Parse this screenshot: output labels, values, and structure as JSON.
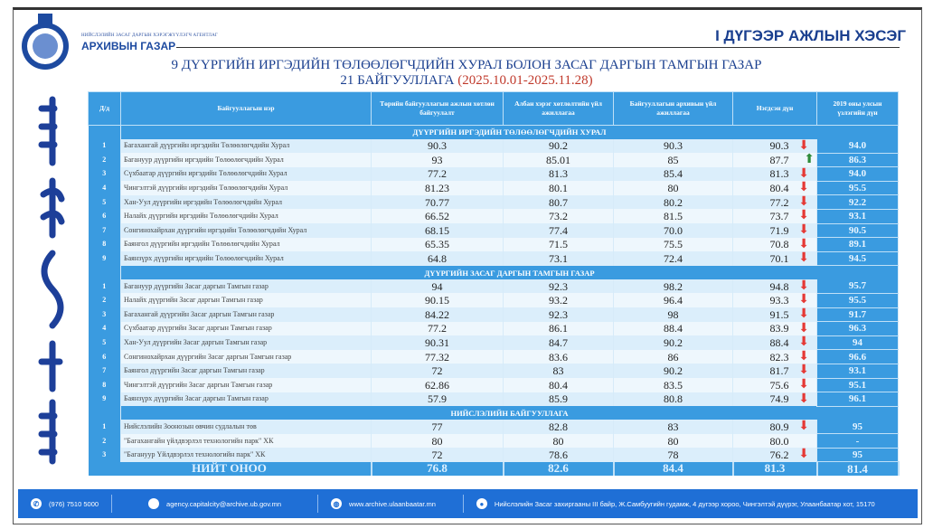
{
  "header": {
    "org_small": "НИЙСЛЭЛИЙН ЗАСАГ ДАРГЫН ХЭРЭГЖҮҮЛЭГЧ АГЕНТЛАГ",
    "org": "АРХИВЫН ГАЗАР",
    "section": "I ДҮГЭЭР АЖЛЫН ХЭСЭГ",
    "title1": "9 ДҮҮРГИЙН ИРГЭДИЙН ТӨЛӨӨЛӨГЧДИЙН ХУРАЛ БОЛОН ЗАСАГ ДАРГЫН ТАМГЫН ГАЗАР",
    "title2": "21 БАЙГУУЛЛАГА",
    "period": "(2025.10.01-2025.11.28)"
  },
  "columns": [
    "Д/д",
    "Байгууллагын нэр",
    "Төрийн байгууллагын ажлын хөтлөн байгуулалт",
    "Албан хэрэг хөтлөлтийн үйл ажиллагаа",
    "Байгууллагын архивын үйл ажиллагаа",
    "Нэгдсэн дүн",
    "2019 оны улсын үзлэгийн дүн"
  ],
  "sections": [
    {
      "title": "ДҮҮРГИЙН ИРГЭДИЙН ТӨЛӨӨЛӨГЧДИЙН ХУРАЛ",
      "rows": [
        [
          "1",
          "Багахангай дүүргийн иргэдийн Төлөөлөгчдийн Хурал",
          "90.3",
          "90.2",
          "90.3",
          "90.3",
          "down",
          "94.0"
        ],
        [
          "2",
          "Багануур дүүргийн иргэдийн Төлөөлөгчдийн Хурал",
          "93",
          "85.01",
          "85",
          "87.7",
          "up",
          "86.3"
        ],
        [
          "3",
          "Сүхбаатар дүүргийн иргэдийн Төлөөлөгчдийн Хурал",
          "77.2",
          "81.3",
          "85.4",
          "81.3",
          "down",
          "94.0"
        ],
        [
          "4",
          "Чингэлтэй дүүргийн иргэдийн Төлөөлөгчдийн Хурал",
          "81.23",
          "80.1",
          "80",
          "80.4",
          "down",
          "95.5"
        ],
        [
          "5",
          "Хан-Уул дүүргийн иргэдийн Төлөөлөгчдийн Хурал",
          "70.77",
          "80.7",
          "80.2",
          "77.2",
          "down",
          "92.2"
        ],
        [
          "6",
          "Налайх дүүргийн иргэдийн Төлөөлөгчдийн Хурал",
          "66.52",
          "73.2",
          "81.5",
          "73.7",
          "down",
          "93.1"
        ],
        [
          "7",
          "Сонгинохайрхан дүүргийн иргэдийн Төлөөлөгчдийн Хурал",
          "68.15",
          "77.4",
          "70.0",
          "71.9",
          "down",
          "90.5"
        ],
        [
          "8",
          "Баянгол дүүргийн иргэдийн Төлөөлөгчдийн Хурал",
          "65.35",
          "71.5",
          "75.5",
          "70.8",
          "down",
          "89.1"
        ],
        [
          "9",
          "Баянзүрх дүүргийн иргэдийн Төлөөлөгчдийн Хурал",
          "64.8",
          "73.1",
          "72.4",
          "70.1",
          "down",
          "94.5"
        ]
      ]
    },
    {
      "title": "ДҮҮРГИЙН ЗАСАГ ДАРГЫН ТАМГЫН ГАЗАР",
      "rows": [
        [
          "1",
          "Багануур дүүргийн Засаг даргын Тамгын газар",
          "94",
          "92.3",
          "98.2",
          "94.8",
          "down",
          "95.7"
        ],
        [
          "2",
          "Налайх дүүргийн Засаг даргын Тамгын газар",
          "90.15",
          "93.2",
          "96.4",
          "93.3",
          "down",
          "95.5"
        ],
        [
          "3",
          "Багахангай дүүргийн Засаг даргын Тамгын газар",
          "84.22",
          "92.3",
          "98",
          "91.5",
          "down",
          "91.7"
        ],
        [
          "4",
          "Сүхбаатар дүүргийн Засаг даргын Тамгын газар",
          "77.2",
          "86.1",
          "88.4",
          "83.9",
          "down",
          "96.3"
        ],
        [
          "5",
          "Хан-Уул дүүргийн Засаг даргын Тамгын газар",
          "90.31",
          "84.7",
          "90.2",
          "88.4",
          "down",
          "94"
        ],
        [
          "6",
          "Сонгинохайрхан дүүргийн Засаг даргын Тамгын газар",
          "77.32",
          "83.6",
          "86",
          "82.3",
          "down",
          "96.6"
        ],
        [
          "7",
          "Баянгол дүүргийн Засаг даргын Тамгын газар",
          "72",
          "83",
          "90.2",
          "81.7",
          "down",
          "93.1"
        ],
        [
          "8",
          "Чингэлтэй дүүргийн Засаг даргын Тамгын газар",
          "62.86",
          "80.4",
          "83.5",
          "75.6",
          "down",
          "95.1"
        ],
        [
          "9",
          "Баянзүрх дүүргийн Засаг даргын Тамгын газар",
          "57.9",
          "85.9",
          "80.8",
          "74.9",
          "down",
          "96.1"
        ]
      ]
    },
    {
      "title": "НИЙСЛЭЛИЙН БАЙГУУЛЛАГА",
      "rows": [
        [
          "1",
          "Нийслэлийн Зоонозын өвчин судлалын төв",
          "77",
          "82.8",
          "83",
          "80.9",
          "down",
          "95"
        ],
        [
          "2",
          "\"Багахангайн үйлдвэрлэл технологийн парк\" ХК",
          "80",
          "80",
          "80",
          "80.0",
          "",
          "-"
        ],
        [
          "3",
          "\"Багануур Үйлдвэрлэл технологийн парк\" ХК",
          "72",
          "78.6",
          "78",
          "76.2",
          "down",
          "95"
        ]
      ]
    }
  ],
  "total": {
    "label": "НИЙТ ОНОО",
    "values": [
      "76.8",
      "82.6",
      "84.4",
      "81.3",
      "81.4"
    ]
  },
  "footer": {
    "phone": "(976) 7510 5000",
    "email": "agency.capitalcity@archive.ub.gov.mn",
    "web": "www.archive.ulaanbaatar.mn",
    "address": "Нийслэлийн Засаг захиргааны III байр, Ж.Самбуугийн гудамж, 4 дүгээр хороо, Чингэлтэй дүүрэг, Улаанбаатар хот, 15170"
  },
  "colors": {
    "header_blue": "#3a9be0",
    "footer_blue": "#1f6fd6",
    "down": "#e53935",
    "up": "#2e8b3a"
  }
}
